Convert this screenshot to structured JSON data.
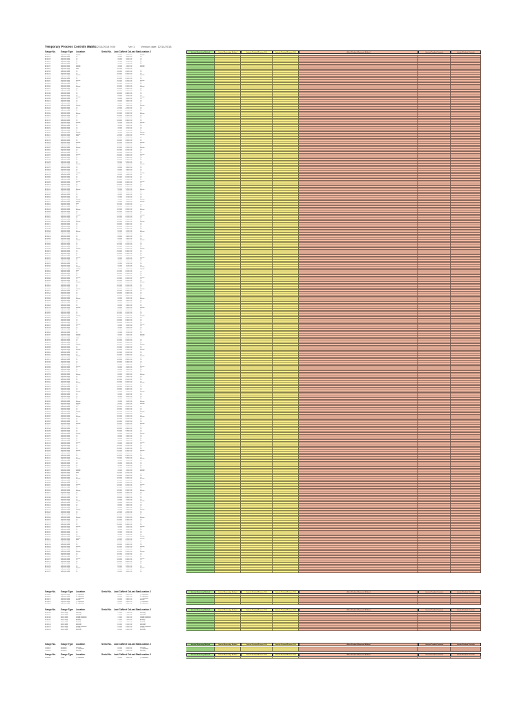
{
  "title": "Temporary Process Controls Matrix",
  "meta": [
    "As of: 12/14/2018 9:00",
    "Ver 1",
    "Version date: 12/14/2018"
  ],
  "left_headers": [
    "Gauge No.",
    "Gauge Type",
    "Location",
    "Serial No.",
    "Last Cal.",
    "Next Cal.",
    "Last Status",
    "Location 2"
  ],
  "right_headers": [
    "Interim Measuring Method",
    "Interim Measuring Method",
    "Interim Product/Process Ctrl",
    "Interim Product/Process Ctrl",
    "Affect Product Measured Method",
    "Interim Product Controls",
    "Interim Product Controls"
  ],
  "colors": {
    "green": "#a9e38b",
    "yellow": "#fbf08a",
    "salmon": "#f3b9a2",
    "grid": "#333333"
  },
  "sections": [
    {
      "rows": [
        [
          "AS-000241",
          "Inspection Gauge",
          "Machine",
          "",
          "3/1/2018",
          "3/1/2019",
          "OK",
          "Machine"
        ],
        [
          "AS-000252",
          "Inspection Gauge",
          "QC",
          "",
          "3/5/2018",
          "3/5/2019",
          "OK",
          "QC"
        ],
        [
          "AS-000318",
          "Inspection Gauge",
          "QC",
          "",
          "3/5/2018",
          "3/5/2019",
          "OK",
          "QC"
        ],
        [
          "AS-000337",
          "Inspection Gauge",
          "QC",
          "",
          "3/5/2018",
          "3/5/2019",
          "OK",
          "QC"
        ],
        [
          "AS-000412",
          "Inspection Gauge",
          "QC",
          "",
          "3/7/2018",
          "3/7/2019",
          "OK",
          "QC"
        ],
        [
          "AS-000455",
          "Inspection Gauge",
          "QC",
          "",
          "3/7/2018",
          "3/7/2019",
          "OK",
          "QC"
        ],
        [
          "AS-000501",
          "Inspection Gauge",
          "Machine",
          "",
          "3/9/2018",
          "3/9/2019",
          "OK",
          "Machine"
        ],
        [
          "AS-000577",
          "Inspection Gauge",
          "Machine",
          "",
          "3/9/2018",
          "3/9/2019",
          "OK",
          "Machine"
        ],
        [
          "AS-000612",
          "Inspection Gauge",
          "MMM",
          "",
          "3/12/2018",
          "3/12/2019",
          "OK",
          ""
        ],
        [
          "AS-000690",
          "Inspection Gauge",
          "QC",
          "",
          "3/12/2018",
          "3/12/2019",
          "OK",
          "QC"
        ],
        [
          "AS-000702",
          "Inspection Gauge",
          "QC",
          "",
          "3/14/2018",
          "3/14/2019",
          "OK",
          "QC"
        ],
        [
          "AS-000759",
          "Inspection Gauge",
          "QC",
          "",
          "3/14/2018",
          "3/14/2019",
          "OK",
          "QC"
        ],
        [
          "AS-000818",
          "Inspection Gauge",
          "Machine",
          "",
          "3/15/2018",
          "3/15/2019",
          "OK",
          "Machine"
        ],
        [
          "AS-000863",
          "Inspection Gauge",
          "QC",
          "",
          "3/15/2018",
          "3/15/2019",
          "OK",
          "QC"
        ],
        [
          "AS-000903",
          "Inspection Gauge",
          "QC",
          "",
          "3/19/2018",
          "3/19/2019",
          "OK",
          "QC"
        ],
        [
          "AS-000947",
          "Inspection Gauge",
          "Machine",
          "",
          "3/19/2018",
          "3/19/2019",
          "OK",
          "Machine"
        ],
        [
          "AS-001011",
          "Inspection Gauge",
          "QC",
          "",
          "3/21/2018",
          "3/21/2019",
          "OK",
          "QC"
        ],
        [
          "AS-001058",
          "Inspection Gauge",
          "QC",
          "",
          "3/21/2018",
          "3/21/2019",
          "OK",
          "QC"
        ],
        [
          "AS-001102",
          "Inspection Gauge",
          "QC",
          "",
          "3/23/2018",
          "3/23/2019",
          "OK",
          "QC"
        ],
        [
          "AS-001166",
          "Inspection Gauge",
          "Machine",
          "",
          "3/23/2018",
          "3/23/2019",
          "OK",
          "Machine"
        ],
        [
          "AS-001211",
          "Inspection Gauge",
          "QC",
          "",
          "3/26/2018",
          "3/26/2019",
          "OK",
          "QC"
        ],
        [
          "AS-001279",
          "Inspection Gauge",
          "QC",
          "",
          "3/26/2018",
          "3/26/2019",
          "OK",
          "QC"
        ],
        [
          "AS-001320",
          "Inspection Gauge",
          "QC",
          "",
          "3/28/2018",
          "3/28/2019",
          "OK",
          "QC"
        ],
        [
          "AS-001384",
          "Inspection Gauge",
          "QC",
          "",
          "3/28/2018",
          "3/28/2019",
          "OK",
          "QC"
        ],
        [
          "AS-001415",
          "Inspection Gauge",
          "QC",
          "",
          "4/2/2018",
          "4/2/2019",
          "OK",
          "QC"
        ],
        [
          "AS-001466",
          "Inspection Gauge",
          "Machine",
          "",
          "4/2/2018",
          "4/2/2019",
          "OK",
          "Machine"
        ],
        [
          "AS-001503",
          "Inspection Gauge",
          "QC",
          "",
          "4/4/2018",
          "4/4/2019",
          "OK",
          "QC"
        ],
        [
          "AS-001572",
          "Inspection Gauge",
          "QC",
          "",
          "4/4/2018",
          "4/4/2019",
          "OK",
          "QC"
        ],
        [
          "AS-001618",
          "Inspection Gauge",
          "QC",
          "",
          "4/6/2018",
          "4/6/2019",
          "OK",
          "QC"
        ],
        [
          "AS-001689",
          "Inspection Gauge",
          "QC",
          "",
          "4/6/2018",
          "4/6/2019",
          "OK",
          "QC"
        ],
        [
          "AS-001734",
          "Inspection Gauge",
          "Machine",
          "",
          "4/9/2018",
          "4/9/2019",
          "OK",
          "Machine"
        ],
        [
          "AS-001795",
          "Inspection Gauge",
          "QC",
          "",
          "4/9/2018",
          "4/9/2019",
          "OK",
          "QC"
        ],
        [
          "AS-001842",
          "Inspection Gauge",
          "QC",
          "",
          "4/11/2018",
          "4/11/2019",
          "OK",
          "QC"
        ],
        [
          "AS-001899",
          "Inspection Gauge",
          "QC",
          "",
          "4/11/2018",
          "4/11/2019",
          "OK",
          "QC"
        ],
        [
          "AS-001937",
          "Inspection Gauge",
          "QC",
          "",
          "4/13/2018",
          "4/13/2019",
          "OK",
          "QC"
        ],
        [
          "AS-001984",
          "Inspection Gauge",
          "Machine",
          "",
          "4/13/2018",
          "4/13/2019",
          "OK",
          "Machine"
        ],
        [
          "AS-002031",
          "Inspection Gauge",
          "QC",
          "",
          "4/16/2018",
          "4/16/2019",
          "OK",
          "QC"
        ],
        [
          "AS-002078",
          "Inspection Gauge",
          "QC",
          "",
          "4/16/2018",
          "4/16/2019",
          "OK",
          "QC"
        ],
        [
          "AS-002125",
          "Inspection Gauge",
          "QC",
          "",
          "4/18/2018",
          "4/18/2019",
          "OK",
          "QC"
        ],
        [
          "AS-002172",
          "Inspection Gauge",
          "QC",
          "",
          "4/18/2018",
          "4/18/2019",
          "OK",
          "QC"
        ]
      ]
    },
    {
      "rows": [
        [
          "AS-004401",
          "Inspection Gauge",
          "QC Department",
          "",
          "6/4/2018",
          "6/4/2019",
          "OK",
          "QC Department"
        ],
        [
          "AS-004452",
          "Inspection Gauge",
          "QC Department",
          "",
          "6/4/2018",
          "6/4/2019",
          "OK",
          "QC Department"
        ],
        [
          "AS-004515",
          "Inspection Gauge",
          "QC Department",
          "",
          "6/6/2018",
          "6/6/2019",
          "OK",
          "QC Department"
        ],
        [
          "AS-004571",
          "Inspection Gauge",
          "Machine",
          "",
          "6/6/2018",
          "6/6/2019",
          "OK",
          "Machine"
        ],
        [
          "AS-004623",
          "Inspection Gauge",
          "QC Department",
          "",
          "6/8/2018",
          "6/8/2019",
          "OK",
          "QC Department"
        ],
        [
          "AS-004688",
          "Inspection Gauge",
          "QC Department",
          "",
          "6/8/2018",
          "6/8/2019",
          "OK",
          "QC Department"
        ]
      ]
    },
    {
      "rows": [
        [
          "BS-000108",
          "Bench Gauge",
          "Machining",
          "",
          "7/2/2018",
          "7/2/2019",
          "OK",
          "Machining"
        ],
        [
          "BS-000127",
          "Bench Gauge",
          "Machining",
          "",
          "7/2/2018",
          "7/2/2019",
          "OK",
          "Machining"
        ],
        [
          "BS-000145",
          "Bench Gauge",
          "Welding Department",
          "",
          "7/5/2018",
          "7/5/2019",
          "OK",
          "Welding Department"
        ],
        [
          "BS-000163",
          "Bench Gauge",
          "Welding Department",
          "",
          "7/5/2018",
          "7/5/2019",
          "OK",
          "Welding Department"
        ],
        [
          "BS-000182",
          "Bench Gauge",
          "Assembly",
          "",
          "7/9/2018",
          "7/9/2019",
          "OK",
          "Assembly"
        ],
        [
          "BS-000201",
          "Bench Gauge",
          "Assembly",
          "",
          "7/9/2018",
          "7/9/2019",
          "OK",
          "Assembly"
        ],
        [
          "BS-000219",
          "Bench Gauge",
          "Machining",
          "",
          "7/11/2018",
          "7/11/2019",
          "OK",
          "Machining"
        ],
        [
          "BS-000238",
          "Bench Gauge",
          "Machining",
          "",
          "7/11/2018",
          "7/11/2019",
          "OK",
          "Machining"
        ],
        [
          "BS-000256",
          "Bench Gauge",
          "Welding Department",
          "",
          "7/13/2018",
          "7/13/2019",
          "OK",
          "Welding Department"
        ],
        [
          "BS-000275",
          "Bench Gauge",
          "Assembly",
          "",
          "7/13/2018",
          "7/13/2019",
          "OK",
          "Assembly"
        ],
        [
          "BS-000293",
          "Bench Gauge",
          "Machining",
          "",
          "7/16/2018",
          "7/16/2019",
          "OK",
          "Machining"
        ]
      ]
    },
    {
      "rows": [
        [
          "CS-000012",
          "Micrometer",
          "Machining",
          "",
          "8/1/2018",
          "8/1/2019",
          "OK",
          "Machining"
        ],
        [
          "CS-000027",
          "Micrometer",
          "QC Department",
          "",
          "8/1/2018",
          "8/1/2019",
          "OK",
          "QC Department"
        ],
        [
          "CS-000041",
          "Micrometer",
          "Machining",
          "",
          "8/3/2018",
          "8/3/2019",
          "OK",
          "Machining"
        ]
      ]
    },
    {
      "rows": [
        [
          "DS-000005",
          "Caliper",
          "QC Department",
          "",
          "9/4/2018",
          "9/4/2019",
          "OK",
          "QC Department"
        ]
      ]
    }
  ]
}
